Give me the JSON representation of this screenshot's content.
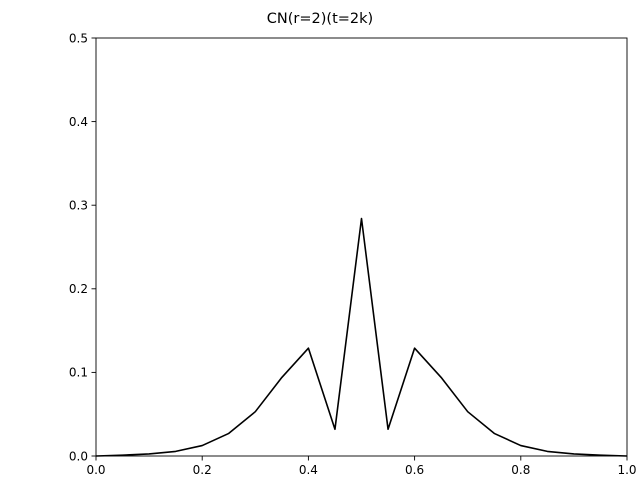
{
  "chart_data": {
    "type": "line",
    "title": "CN(r=2)(t=2k)",
    "xlabel": "",
    "ylabel": "",
    "xlim": [
      0.0,
      1.0
    ],
    "ylim": [
      0.0,
      0.5
    ],
    "x_ticks": [
      "0.0",
      "0.2",
      "0.4",
      "0.6",
      "0.8",
      "1.0"
    ],
    "y_ticks": [
      "0.0",
      "0.1",
      "0.2",
      "0.3",
      "0.4",
      "0.5"
    ],
    "grid": false,
    "series": [
      {
        "color": "#000000",
        "x": [
          0.0,
          0.05,
          0.1,
          0.15,
          0.2,
          0.25,
          0.3,
          0.35,
          0.4,
          0.45,
          0.5,
          0.55,
          0.6,
          0.65,
          0.7,
          0.75,
          0.8,
          0.85,
          0.9,
          0.95,
          1.0
        ],
        "y": [
          0.0,
          0.001,
          0.0025,
          0.0055,
          0.0125,
          0.027,
          0.053,
          0.094,
          0.129,
          0.032,
          0.284,
          0.032,
          0.129,
          0.094,
          0.053,
          0.027,
          0.0125,
          0.0055,
          0.0025,
          0.001,
          0.0
        ]
      }
    ]
  }
}
